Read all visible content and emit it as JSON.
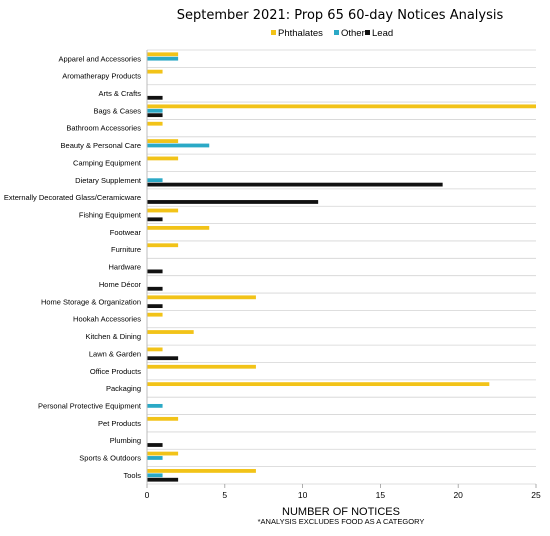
{
  "chart_data": {
    "type": "bar",
    "orientation": "horizontal",
    "title": "September 2021: Prop 65 60-day Notices Analysis",
    "xlabel": "NUMBER OF NOTICES",
    "footnote": "*ANALYSIS EXCLUDES FOOD AS A CATEGORY",
    "xlim": [
      0,
      25
    ],
    "xticks": [
      0,
      5,
      10,
      15,
      20,
      25
    ],
    "legend_position": "top",
    "categories": [
      "Apparel and Accessories",
      "Aromatherapy Products",
      "Arts & Crafts",
      "Bags & Cases",
      "Bathroom Accessories",
      "Beauty & Personal Care",
      "Camping Equipment",
      "Dietary Supplement",
      "Externally Decorated Glass/Ceramicware",
      "Fishing Equipment",
      "Footwear",
      "Furniture",
      "Hardware",
      "Home Décor",
      "Home Storage & Organization",
      "Hookah Accessories",
      "Kitchen & Dining",
      "Lawn & Garden",
      "Office Products",
      "Packaging",
      "Personal Protective Equipment",
      "Pet Products",
      "Plumbing",
      "Sports & Outdoors",
      "Tools"
    ],
    "series": [
      {
        "name": "Phthalates",
        "color": "#f2c318",
        "values": [
          2,
          1,
          0,
          25,
          1,
          2,
          2,
          0,
          0,
          2,
          4,
          2,
          0,
          0,
          7,
          1,
          3,
          1,
          7,
          22,
          0,
          2,
          0,
          2,
          7
        ]
      },
      {
        "name": "Other",
        "color": "#2ba9c6",
        "values": [
          2,
          0,
          0,
          1,
          0,
          4,
          0,
          1,
          0,
          0,
          0,
          0,
          0,
          0,
          0,
          0,
          0,
          0,
          0,
          0,
          1,
          0,
          0,
          1,
          1
        ]
      },
      {
        "name": "Lead",
        "color": "#111111",
        "values": [
          0,
          0,
          1,
          1,
          0,
          0,
          0,
          19,
          11,
          1,
          0,
          0,
          1,
          1,
          1,
          0,
          0,
          2,
          0,
          0,
          0,
          0,
          1,
          0,
          2
        ]
      }
    ]
  }
}
